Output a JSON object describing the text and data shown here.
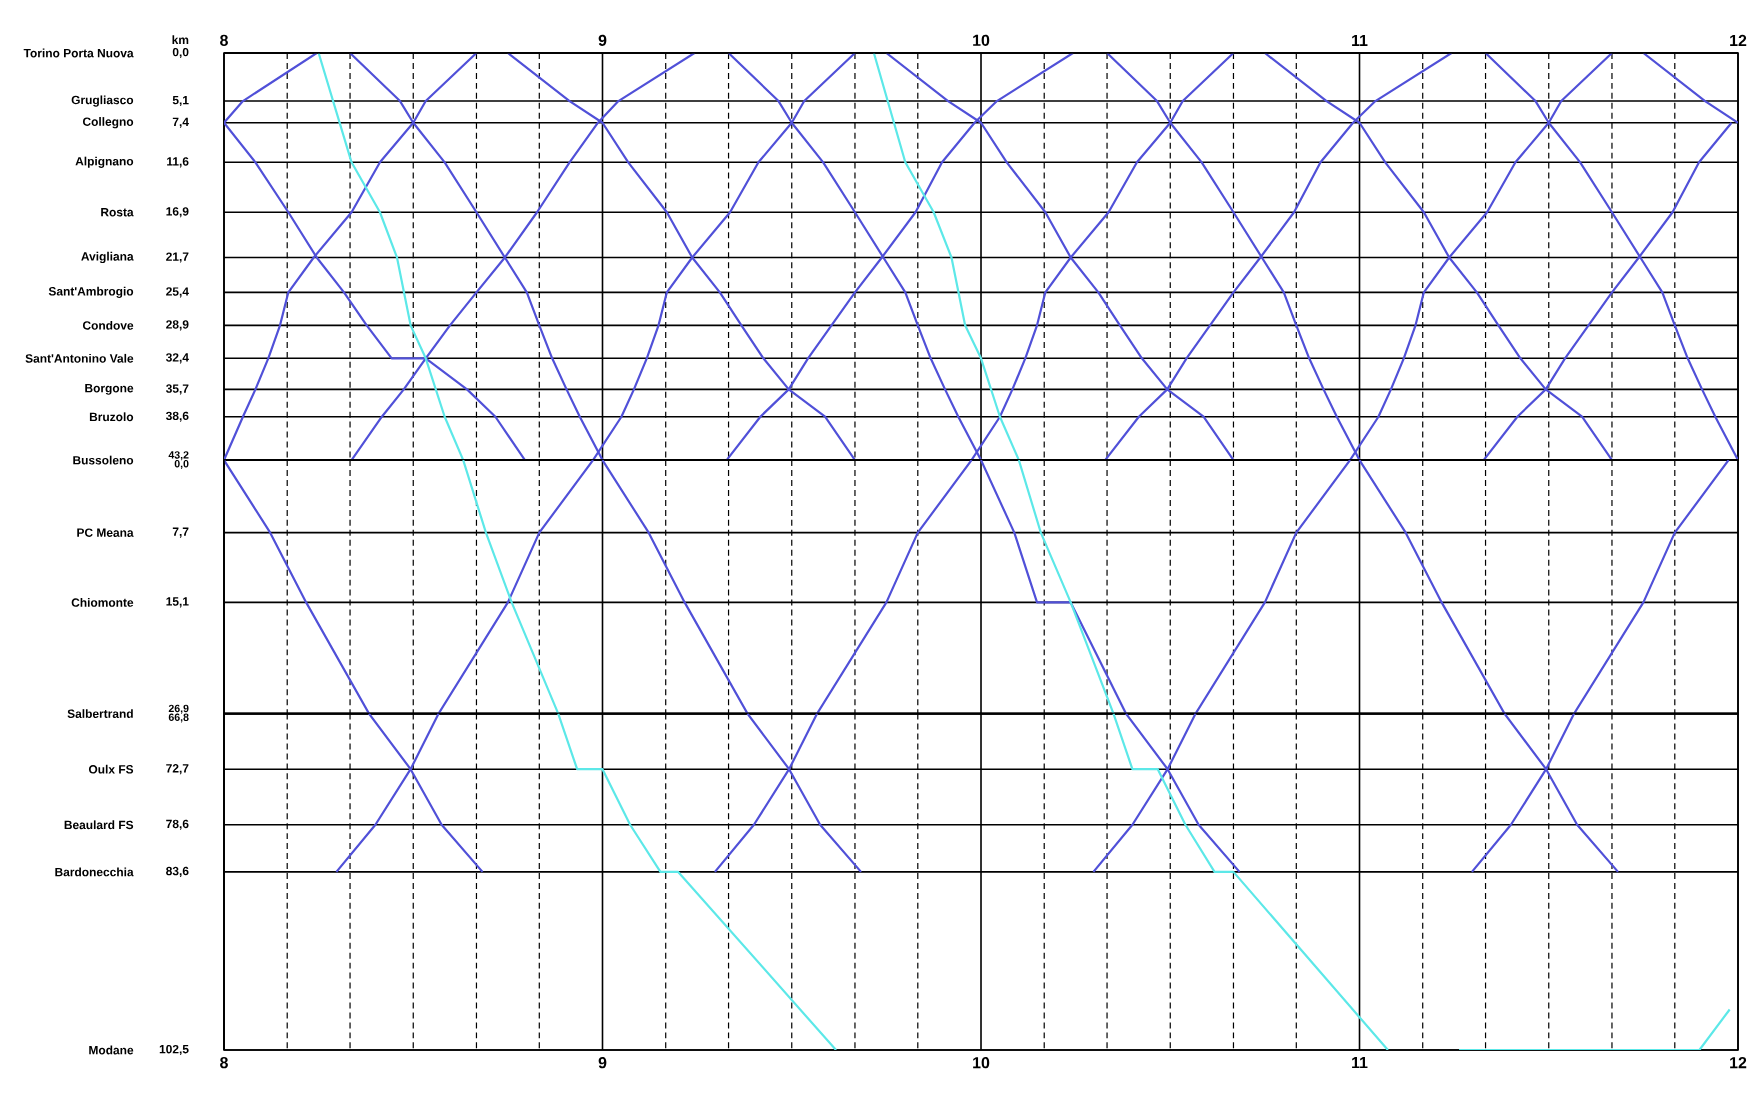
{
  "chart_data": [
    {
      "type": "line",
      "grid": true,
      "tick_labels": "y",
      "ylabel": "km",
      "xlim": [
        8,
        12
      ],
      "xticks": [
        {
          "value": 8,
          "label": null
        },
        {
          "value": 8.167,
          "label": null
        },
        {
          "value": 8.333,
          "label": null
        },
        {
          "value": 8.5,
          "label": null
        },
        {
          "value": 8.667,
          "label": null
        },
        {
          "value": 8.833,
          "label": null
        },
        {
          "value": 9,
          "label": null
        },
        {
          "value": 9.167,
          "label": null
        },
        {
          "value": 9.333,
          "label": null
        },
        {
          "value": 9.5,
          "label": null
        },
        {
          "value": 9.667,
          "label": null
        },
        {
          "value": 9.833,
          "label": null
        },
        {
          "value": 10,
          "label": null
        },
        {
          "value": 10.167,
          "label": null
        },
        {
          "value": 10.333,
          "label": null
        },
        {
          "value": 10.5,
          "label": null
        },
        {
          "value": 10.667,
          "label": null
        },
        {
          "value": 10.833,
          "label": null
        },
        {
          "value": 11,
          "label": null
        },
        {
          "value": 11.167,
          "label": null
        },
        {
          "value": 11.333,
          "label": null
        },
        {
          "value": 11.5,
          "label": null
        },
        {
          "value": 11.667,
          "label": null
        },
        {
          "value": 11.833,
          "label": null
        },
        {
          "value": 12,
          "label": null
        }
      ],
      "x2lim": [
        8,
        12
      ],
      "x2ticks": [
        8,
        9,
        10,
        11,
        12
      ],
      "ylim": [
        43.2,
        0
      ],
      "yticks": [
        {
          "value": 0,
          "label": "0,0"
        },
        {
          "value": 5.1,
          "label": "5,1"
        },
        {
          "value": 7.4,
          "label": "7,4"
        },
        {
          "value": 11.6,
          "label": "11,6"
        },
        {
          "value": 16.9,
          "label": "16,9"
        },
        {
          "value": 21.7,
          "label": "21,7"
        },
        {
          "value": 25.4,
          "label": "25,4"
        },
        {
          "value": 28.9,
          "label": "28,9"
        },
        {
          "value": 32.4,
          "label": "32,4"
        },
        {
          "value": 35.7,
          "label": "35,7"
        },
        {
          "value": 38.6,
          "label": "38,6"
        },
        {
          "value": 43.2,
          "label": "43,2"
        }
      ],
      "annotations": [
        "Torino Porta Nuova",
        "Grugliasco",
        "Collegno",
        "Alpignano",
        "Rosta",
        "Avigliana",
        "Sant'Ambrogio",
        "Condove",
        "Sant'Antonino Vale",
        "Borgone",
        "Bruzolo",
        "Bussoleno"
      ],
      "series": [
        {
          "color": "#5050d8",
          "x": [
            8,
            8.083,
            8.17,
            8.245,
            8.317,
            8.377,
            8.443,
            8.533,
            8.642,
            8.717,
            8.795
          ],
          "values": [
            7.4,
            11.6,
            16.9,
            21.7,
            25.4,
            28.9,
            32.4,
            32.4,
            35.7,
            38.6,
            43.2
          ]
        },
        {
          "color": "#5050d8",
          "x": [
            8,
            8.05,
            8.245
          ],
          "values": [
            7.4,
            5.1,
            0
          ]
        },
        {
          "color": "#5050d8",
          "x": [
            8,
            8.05,
            8.083,
            8.117,
            8.148,
            8.17,
            8.237,
            8.337,
            8.412,
            8.5,
            8.533,
            8.667
          ],
          "values": [
            43.2,
            38.6,
            35.7,
            32.4,
            28.9,
            25.4,
            21.7,
            16.9,
            11.6,
            7.4,
            5.1,
            0
          ]
        },
        {
          "color": "#5050d8",
          "x": [
            8.333,
            8.465,
            8.5,
            8.583,
            8.667,
            8.742,
            8.8,
            8.833,
            8.867,
            8.905,
            8.94,
            9
          ],
          "values": [
            0,
            5.1,
            7.4,
            11.6,
            16.9,
            21.7,
            25.4,
            28.9,
            32.4,
            35.7,
            38.6,
            43.2
          ]
        },
        {
          "color": "#5050d8",
          "x": [
            9.333,
            9.465,
            9.5,
            9.583,
            9.667,
            9.742,
            9.8,
            9.833,
            9.867,
            9.905,
            9.94,
            10
          ],
          "values": [
            0,
            5.1,
            7.4,
            11.6,
            16.9,
            21.7,
            25.4,
            28.9,
            32.4,
            35.7,
            38.6,
            43.2
          ]
        },
        {
          "color": "#5050d8",
          "x": [
            10.333,
            10.465,
            10.5,
            10.583,
            10.667,
            10.742,
            10.8,
            10.833,
            10.867,
            10.905,
            10.94,
            11
          ],
          "values": [
            0,
            5.1,
            7.4,
            11.6,
            16.9,
            21.7,
            25.4,
            28.9,
            32.4,
            35.7,
            38.6,
            43.2
          ]
        },
        {
          "color": "#5050d8",
          "x": [
            11.333,
            11.465,
            11.5,
            11.583,
            11.667,
            11.742,
            11.8,
            11.833,
            11.867,
            11.905,
            11.94,
            12
          ],
          "values": [
            0,
            5.1,
            7.4,
            11.6,
            16.9,
            21.7,
            25.4,
            28.9,
            32.4,
            35.7,
            38.6,
            43.2
          ]
        },
        {
          "color": "#5050d8",
          "x": [
            8.75,
            8.913,
            9,
            9.068,
            9.17,
            9.237,
            9.31,
            9.367,
            9.425,
            9.492,
            9.588,
            9.667
          ],
          "values": [
            0,
            5.1,
            7.4,
            11.6,
            16.9,
            21.7,
            25.4,
            28.9,
            32.4,
            35.7,
            38.6,
            43.2
          ]
        },
        {
          "color": "#5050d8",
          "x": [
            9.75,
            9.913,
            10,
            10.068,
            10.17,
            10.237,
            10.31,
            10.367,
            10.425,
            10.492,
            10.588,
            10.667
          ],
          "values": [
            0,
            5.1,
            7.4,
            11.6,
            16.9,
            21.7,
            25.4,
            28.9,
            32.4,
            35.7,
            38.6,
            43.2
          ]
        },
        {
          "color": "#5050d8",
          "x": [
            10.75,
            10.913,
            11,
            11.068,
            11.17,
            11.237,
            11.31,
            11.367,
            11.425,
            11.492,
            11.588,
            11.667
          ],
          "values": [
            0,
            5.1,
            7.4,
            11.6,
            16.9,
            21.7,
            25.4,
            28.9,
            32.4,
            35.7,
            38.6,
            43.2
          ]
        },
        {
          "color": "#5050d8",
          "x": [
            11.75,
            11.913,
            12
          ],
          "values": [
            0,
            5.1,
            7.4
          ]
        },
        {
          "color": "#5050d8",
          "x": [
            8.337,
            8.417,
            8.475,
            8.533,
            8.597,
            8.667,
            8.742,
            8.827,
            8.913,
            8.988,
            9.042,
            9.243
          ],
          "values": [
            43.2,
            38.6,
            35.7,
            32.4,
            28.9,
            25.4,
            21.7,
            16.9,
            11.6,
            7.4,
            5.1,
            0
          ]
        },
        {
          "color": "#5050d8",
          "x": [
            9.328,
            9.417,
            9.492,
            9.543,
            9.605,
            9.667,
            9.738,
            9.827,
            9.897,
            9.983,
            10.042,
            10.243
          ],
          "values": [
            43.2,
            38.6,
            35.7,
            32.4,
            28.9,
            25.4,
            21.7,
            16.9,
            11.6,
            7.4,
            5.1,
            0
          ]
        },
        {
          "color": "#5050d8",
          "x": [
            10.328,
            10.417,
            10.492,
            10.543,
            10.605,
            10.667,
            10.738,
            10.827,
            10.897,
            10.983,
            11.042,
            11.243
          ],
          "values": [
            43.2,
            38.6,
            35.7,
            32.4,
            28.9,
            25.4,
            21.7,
            16.9,
            11.6,
            7.4,
            5.1,
            0
          ]
        },
        {
          "color": "#5050d8",
          "x": [
            11.328,
            11.417,
            11.492,
            11.543,
            11.605,
            11.667,
            11.738,
            11.827,
            11.897,
            11.983
          ],
          "values": [
            43.2,
            38.6,
            35.7,
            32.4,
            28.9,
            25.4,
            21.7,
            16.9,
            11.6,
            7.4
          ]
        },
        {
          "color": "#5050d8",
          "x": [
            8.975,
            9.05,
            9.083,
            9.117,
            9.148,
            9.17,
            9.237,
            9.337,
            9.412,
            9.5,
            9.533,
            9.667
          ],
          "values": [
            43.2,
            38.6,
            35.7,
            32.4,
            28.9,
            25.4,
            21.7,
            16.9,
            11.6,
            7.4,
            5.1,
            0
          ]
        },
        {
          "color": "#5050d8",
          "x": [
            9.975,
            10.05,
            10.083,
            10.117,
            10.148,
            10.17,
            10.237,
            10.337,
            10.412,
            10.5,
            10.533,
            10.667
          ],
          "values": [
            43.2,
            38.6,
            35.7,
            32.4,
            28.9,
            25.4,
            21.7,
            16.9,
            11.6,
            7.4,
            5.1,
            0
          ]
        },
        {
          "color": "#5050d8",
          "x": [
            10.975,
            11.05,
            11.083,
            11.117,
            11.148,
            11.17,
            11.237,
            11.337,
            11.412,
            11.5,
            11.533,
            11.667
          ],
          "values": [
            43.2,
            38.6,
            35.7,
            32.4,
            28.9,
            25.4,
            21.7,
            16.9,
            11.6,
            7.4,
            5.1,
            0
          ]
        },
        {
          "color": "#5ce8e8",
          "x": [
            8.25,
            8.337,
            8.412,
            8.457,
            8.493,
            8.533,
            8.583,
            8.632
          ],
          "values": [
            0,
            11.6,
            16.9,
            21.7,
            28.9,
            32.4,
            38.6,
            43.2
          ]
        },
        {
          "color": "#5ce8e8",
          "x": [
            9.717,
            9.8,
            9.875,
            9.922,
            9.958,
            10.0,
            10.05,
            10.1
          ],
          "values": [
            0,
            11.6,
            16.9,
            21.7,
            28.9,
            32.4,
            38.6,
            43.2
          ]
        }
      ]
    },
    {
      "type": "line",
      "grid": true,
      "tick_labels": "y",
      "xlim": [
        8,
        12
      ],
      "xticks": [
        {
          "value": 8,
          "label": null
        },
        {
          "value": 8.167,
          "label": null
        },
        {
          "value": 8.333,
          "label": null
        },
        {
          "value": 8.5,
          "label": null
        },
        {
          "value": 8.667,
          "label": null
        },
        {
          "value": 8.833,
          "label": null
        },
        {
          "value": 9,
          "label": null
        },
        {
          "value": 9.167,
          "label": null
        },
        {
          "value": 9.333,
          "label": null
        },
        {
          "value": 9.5,
          "label": null
        },
        {
          "value": 9.667,
          "label": null
        },
        {
          "value": 9.833,
          "label": null
        },
        {
          "value": 10,
          "label": null
        },
        {
          "value": 10.167,
          "label": null
        },
        {
          "value": 10.333,
          "label": null
        },
        {
          "value": 10.5,
          "label": null
        },
        {
          "value": 10.667,
          "label": null
        },
        {
          "value": 10.833,
          "label": null
        },
        {
          "value": 11,
          "label": null
        },
        {
          "value": 11.167,
          "label": null
        },
        {
          "value": 11.333,
          "label": null
        },
        {
          "value": 11.5,
          "label": null
        },
        {
          "value": 11.667,
          "label": null
        },
        {
          "value": 11.833,
          "label": null
        },
        {
          "value": 12,
          "label": null
        }
      ],
      "ylim": [
        26.9,
        0
      ],
      "yticks": [
        {
          "value": 0,
          "label": "0,0"
        },
        {
          "value": 7.7,
          "label": "7,7"
        },
        {
          "value": 15.1,
          "label": "15,1"
        },
        {
          "value": 26.9,
          "label": "26,9"
        }
      ],
      "annotations": [
        "PC Meana",
        "Chiomonte",
        "Salbertrand"
      ],
      "series": [
        {
          "color": "#5050d8",
          "x": [
            8,
            8.122,
            8.217,
            8.383
          ],
          "values": [
            0,
            7.7,
            15.1,
            26.9
          ]
        },
        {
          "color": "#5050d8",
          "x": [
            9,
            9.122,
            9.217,
            9.383
          ],
          "values": [
            0,
            7.7,
            15.1,
            26.9
          ]
        },
        {
          "color": "#5050d8",
          "x": [
            10,
            10.088,
            10.148,
            10.237,
            10.383
          ],
          "values": [
            0,
            7.7,
            15.1,
            15.1,
            26.9
          ]
        },
        {
          "color": "#5050d8",
          "x": [
            11,
            11.122,
            11.217,
            11.383
          ],
          "values": [
            0,
            7.7,
            15.1,
            26.9
          ]
        },
        {
          "color": "#5050d8",
          "x": [
            8.567,
            8.75,
            8.833,
            8.975
          ],
          "values": [
            26.9,
            15.1,
            7.7,
            0
          ]
        },
        {
          "color": "#5050d8",
          "x": [
            9.567,
            9.75,
            9.833,
            9.975
          ],
          "values": [
            26.9,
            15.1,
            7.7,
            0
          ]
        },
        {
          "color": "#5050d8",
          "x": [
            10.567,
            10.75,
            10.833,
            10.975
          ],
          "values": [
            26.9,
            15.1,
            7.7,
            0
          ]
        },
        {
          "color": "#5050d8",
          "x": [
            11.567,
            11.75,
            11.833,
            11.975
          ],
          "values": [
            26.9,
            15.1,
            7.7,
            0
          ]
        },
        {
          "color": "#5ce8e8",
          "x": [
            8.632,
            8.692,
            8.76,
            8.883
          ],
          "values": [
            0,
            7.7,
            15.1,
            26.9
          ]
        },
        {
          "color": "#5ce8e8",
          "x": [
            10.1,
            10.158,
            10.237,
            10.35
          ],
          "values": [
            0,
            7.7,
            15.1,
            26.9
          ]
        }
      ]
    },
    {
      "type": "line",
      "grid": true,
      "xlim": [
        8,
        12
      ],
      "xticks": [
        8,
        {
          "value": 8.167,
          "label": null
        },
        {
          "value": 8.333,
          "label": null
        },
        {
          "value": 8.5,
          "label": null
        },
        {
          "value": 8.667,
          "label": null
        },
        {
          "value": 8.833,
          "label": null
        },
        9,
        {
          "value": 9.167,
          "label": null
        },
        {
          "value": 9.333,
          "label": null
        },
        {
          "value": 9.5,
          "label": null
        },
        {
          "value": 9.667,
          "label": null
        },
        {
          "value": 9.833,
          "label": null
        },
        10,
        {
          "value": 10.167,
          "label": null
        },
        {
          "value": 10.333,
          "label": null
        },
        {
          "value": 10.5,
          "label": null
        },
        {
          "value": 10.667,
          "label": null
        },
        {
          "value": 10.833,
          "label": null
        },
        11,
        {
          "value": 11.167,
          "label": null
        },
        {
          "value": 11.333,
          "label": null
        },
        {
          "value": 11.5,
          "label": null
        },
        {
          "value": 11.667,
          "label": null
        },
        {
          "value": 11.833,
          "label": null
        },
        12
      ],
      "ylim": [
        102.5,
        66.8
      ],
      "yticks": [
        {
          "value": 66.8,
          "label": "66,8"
        },
        {
          "value": 72.7,
          "label": "72,7"
        },
        {
          "value": 78.6,
          "label": "78,6"
        },
        {
          "value": 83.6,
          "label": "83,6"
        },
        {
          "value": 102.5,
          "label": "102,5"
        }
      ],
      "annotations": [
        "Oulx FS",
        "Beaulard FS",
        "Bardonecchia",
        "Modane"
      ],
      "series": [
        {
          "color": "#5050d8",
          "x": [
            8.383,
            8.493,
            8.575,
            8.683
          ],
          "values": [
            66.8,
            72.7,
            78.6,
            83.6
          ]
        },
        {
          "color": "#5050d8",
          "x": [
            9.383,
            9.493,
            9.575,
            9.683
          ],
          "values": [
            66.8,
            72.7,
            78.6,
            83.6
          ]
        },
        {
          "color": "#5050d8",
          "x": [
            10.383,
            10.493,
            10.575,
            10.683
          ],
          "values": [
            66.8,
            72.7,
            78.6,
            83.6
          ]
        },
        {
          "color": "#5050d8",
          "x": [
            11.383,
            11.493,
            11.575,
            11.683
          ],
          "values": [
            66.8,
            72.7,
            78.6,
            83.6
          ]
        },
        {
          "color": "#5050d8",
          "x": [
            8.297,
            8.4,
            8.493,
            8.567
          ],
          "values": [
            83.6,
            78.6,
            72.7,
            66.8
          ]
        },
        {
          "color": "#5050d8",
          "x": [
            9.297,
            9.4,
            9.493,
            9.567
          ],
          "values": [
            83.6,
            78.6,
            72.7,
            66.8
          ]
        },
        {
          "color": "#5050d8",
          "x": [
            10.297,
            10.4,
            10.493,
            10.567
          ],
          "values": [
            83.6,
            78.6,
            72.7,
            66.8
          ]
        },
        {
          "color": "#5050d8",
          "x": [
            11.297,
            11.4,
            11.493,
            11.567
          ],
          "values": [
            83.6,
            78.6,
            72.7,
            66.8
          ]
        },
        {
          "color": "#5ce8e8",
          "x": [
            8.883,
            8.933,
            9.0,
            9.073,
            9.153,
            9.2,
            9.617
          ],
          "values": [
            66.8,
            72.7,
            72.7,
            78.6,
            83.6,
            83.6,
            102.5
          ]
        },
        {
          "color": "#5ce8e8",
          "x": [
            10.35,
            10.4,
            10.467,
            10.54,
            10.617,
            10.667,
            11.075
          ],
          "values": [
            66.8,
            72.7,
            72.7,
            78.6,
            83.6,
            83.6,
            102.5
          ]
        },
        {
          "color": "#5ce8e8",
          "x": [
            11.263,
            11.898,
            11.978
          ],
          "values": [
            102.5,
            102.5,
            98.2
          ]
        }
      ]
    }
  ]
}
